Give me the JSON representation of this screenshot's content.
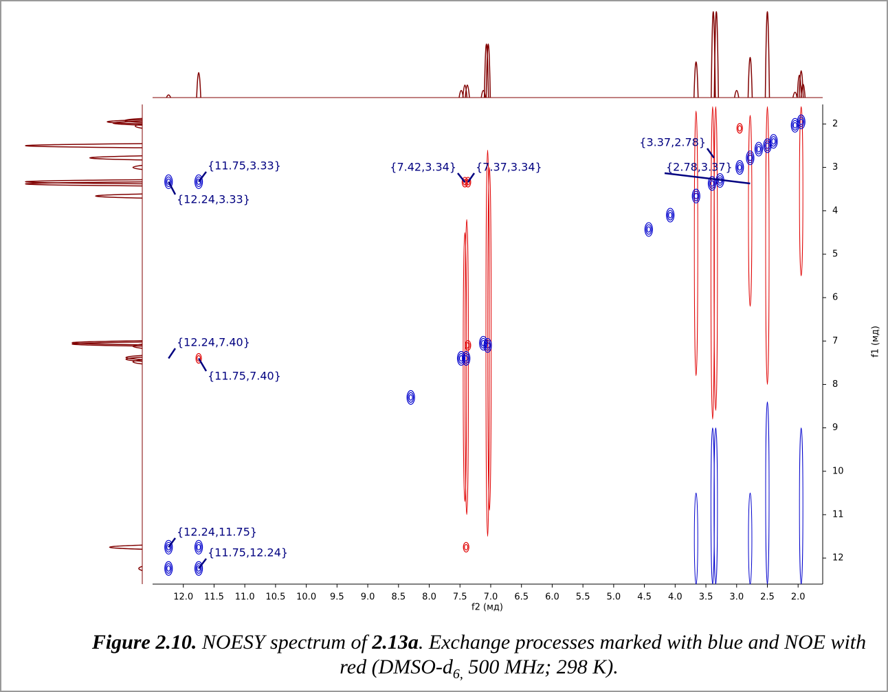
{
  "chart_data": {
    "type": "contour",
    "xlabel": "f2 (мд)",
    "ylabel": "f1 (мд)",
    "xlim": [
      12.5,
      1.6
    ],
    "ylim": [
      1.55,
      12.6
    ],
    "xticks": [
      {
        "value": 12,
        "label": "12.0"
      },
      11.5,
      {
        "value": 11,
        "label": "11.0"
      },
      10.5,
      {
        "value": 10,
        "label": "10.0"
      },
      9.5,
      {
        "value": 9,
        "label": "9.0"
      },
      8.5,
      {
        "value": 8,
        "label": "8.0"
      },
      7.5,
      {
        "value": 7,
        "label": "7.0"
      },
      6.5,
      {
        "value": 6,
        "label": "6.0"
      },
      5.5,
      {
        "value": 5,
        "label": "5.0"
      },
      4.5,
      {
        "value": 4,
        "label": "4.0"
      },
      3.5,
      {
        "value": 3,
        "label": "3.0"
      },
      2.5,
      {
        "value": 2,
        "label": "2.0"
      }
    ],
    "yticks": [
      2,
      3,
      4,
      5,
      6,
      7,
      8,
      9,
      10,
      11,
      12
    ],
    "projection": {
      "color": "#800000",
      "x": [
        12.24,
        11.75,
        7.48,
        7.42,
        7.38,
        7.12,
        7.07,
        7.04,
        3.66,
        3.38,
        3.33,
        3.0,
        2.78,
        2.5,
        2.05,
        1.98,
        1.95,
        1.92
      ],
      "intensity": [
        3,
        28,
        8,
        14,
        14,
        8,
        60,
        60,
        40,
        100,
        100,
        8,
        45,
        100,
        6,
        25,
        30,
        15
      ]
    },
    "exchange_peaks": {
      "color": "#0000cc",
      "x": [
        12.24,
        11.75,
        12.24,
        11.75,
        12.24,
        11.75,
        7.48,
        7.4,
        7.05,
        7.12,
        8.3,
        4.43,
        4.08,
        3.66,
        3.4,
        3.27,
        2.95,
        2.78,
        2.64,
        2.5,
        2.4,
        2.05,
        1.95
      ],
      "y": [
        3.33,
        3.33,
        11.75,
        11.75,
        12.24,
        12.24,
        7.4,
        7.4,
        7.1,
        7.05,
        8.3,
        4.43,
        4.1,
        3.66,
        3.37,
        3.3,
        3.0,
        2.78,
        2.58,
        2.5,
        2.4,
        2.03,
        1.95
      ]
    },
    "noe_peaks": {
      "color": "#e00000",
      "x": [
        11.75,
        7.42,
        7.37,
        7.4,
        7.37,
        2.95
      ],
      "y": [
        7.4,
        3.34,
        3.34,
        11.75,
        7.1,
        2.1
      ]
    },
    "noe_streaks": {
      "color": "#e00000",
      "x": [
        7.42,
        7.39,
        7.05,
        7.02,
        3.66,
        3.39,
        3.34,
        2.78,
        2.5,
        1.95
      ],
      "y_start": [
        4.5,
        4.2,
        2.6,
        3.0,
        1.7,
        1.6,
        1.6,
        1.8,
        1.6,
        1.6
      ],
      "y_end": [
        10.7,
        11.0,
        11.5,
        10.9,
        7.8,
        8.8,
        8.6,
        6.2,
        8.0,
        5.5
      ]
    },
    "exchange_streaks": {
      "color": "#0000cc",
      "x": [
        3.66,
        3.39,
        3.34,
        2.78,
        2.5,
        1.95
      ],
      "y_start": [
        10.5,
        9.0,
        9.0,
        10.5,
        8.4,
        9.0
      ],
      "y_end": [
        12.6,
        12.6,
        12.6,
        12.6,
        12.6,
        12.6
      ]
    },
    "annotations": [
      {
        "label": "{11.75,3.33}",
        "x": 11.75,
        "y": 3.33
      },
      {
        "label": "{12.24,3.33}",
        "x": 12.24,
        "y": 3.33
      },
      {
        "label": "{7.42,3.34}",
        "x": 7.42,
        "y": 3.34
      },
      {
        "label": "{7.37,3.34}",
        "x": 7.37,
        "y": 3.34
      },
      {
        "label": "{3.37,2.78}",
        "x": 3.37,
        "y": 2.78
      },
      {
        "label": "{2.78,3.37}",
        "x": 2.78,
        "y": 3.37
      },
      {
        "label": "{12.24,7.40}",
        "x": 12.24,
        "y": 7.4
      },
      {
        "label": "{11.75,7.40}",
        "x": 11.75,
        "y": 7.4
      },
      {
        "label": "{12.24,11.75}",
        "x": 12.24,
        "y": 11.75
      },
      {
        "label": "{11.75,12.24}",
        "x": 11.75,
        "y": 12.24
      }
    ]
  },
  "caption": {
    "figure": "Figure 2.10.",
    "text1": " NOESY spectrum of ",
    "compound": "2.13a",
    "text2": ". Exchange processes marked with blue and NOE with red (DMSO-d",
    "subscript": "6,",
    "text3": " 500 MHz; 298 K)."
  }
}
